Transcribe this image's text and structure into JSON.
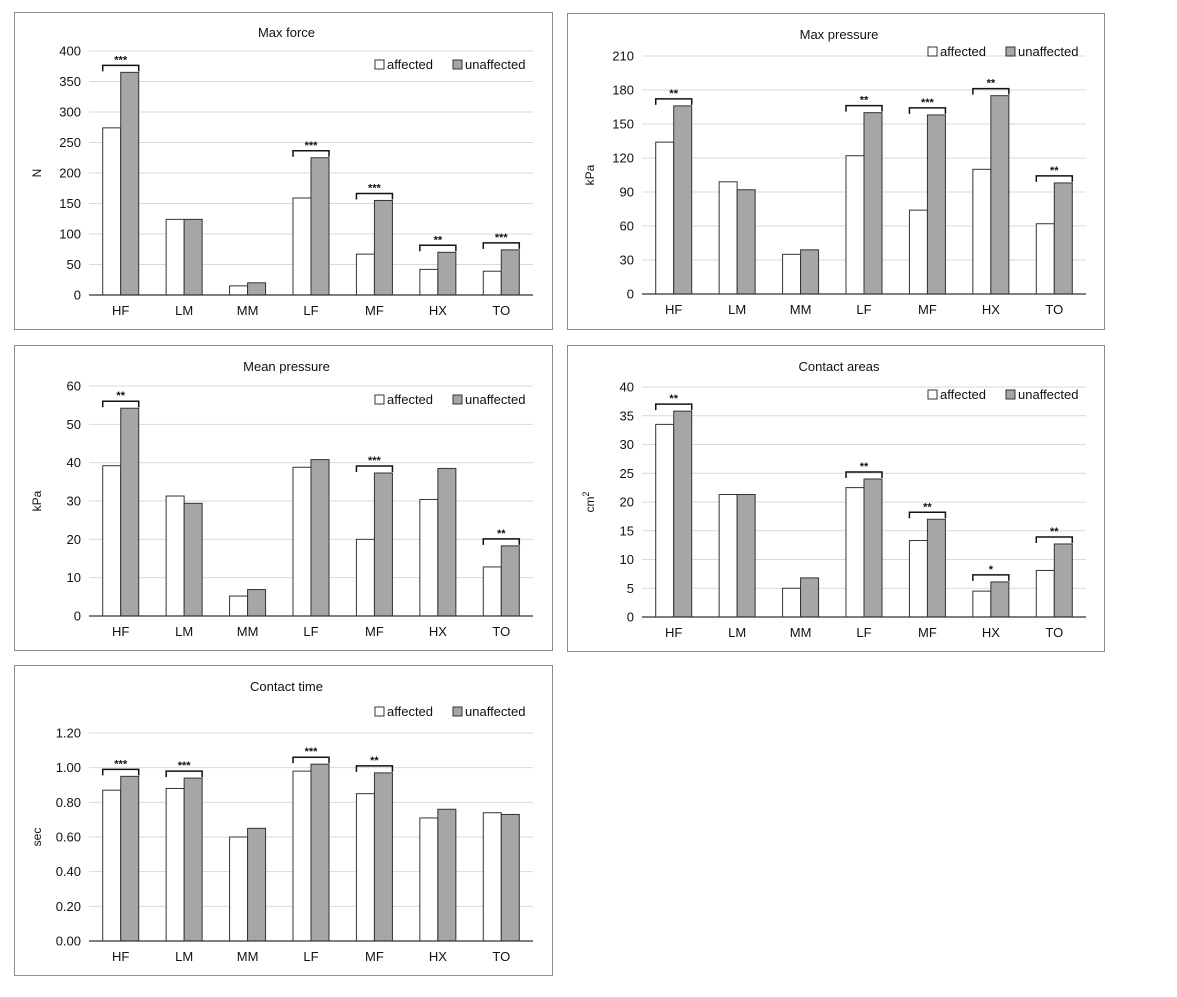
{
  "colors": {
    "affected": "#ffffff",
    "unaffected": "#a6a6a6",
    "bar_stroke": "#333333",
    "grid": "#d9d9d9",
    "axis": "#333333",
    "panel_border": "#8c8c8c"
  },
  "chart_data": [
    {
      "type": "bar",
      "title": "Max force",
      "ylabel": "N",
      "ylabel_sup": "",
      "categories": [
        "HF",
        "LM",
        "MM",
        "LF",
        "MF",
        "HX",
        "TO"
      ],
      "yticks": [
        "0",
        "50",
        "100",
        "150",
        "200",
        "250",
        "300",
        "350",
        "400"
      ],
      "ylim": [
        0,
        400
      ],
      "grid": true,
      "legend": "top-right",
      "series": [
        {
          "name": "affected",
          "values": [
            274,
            124,
            15,
            159,
            67,
            42,
            39
          ]
        },
        {
          "name": "unaffected",
          "values": [
            365,
            124,
            20,
            225,
            155,
            70,
            74
          ]
        }
      ],
      "significance": [
        "***",
        "",
        "",
        "***",
        "***",
        "**",
        "***"
      ]
    },
    {
      "type": "bar",
      "title": "Max pressure",
      "ylabel": "kPa",
      "ylabel_sup": "",
      "categories": [
        "HF",
        "LM",
        "MM",
        "LF",
        "MF",
        "HX",
        "TO"
      ],
      "yticks": [
        "0",
        "30",
        "60",
        "90",
        "120",
        "150",
        "180",
        "210"
      ],
      "ylim": [
        0,
        210
      ],
      "grid": true,
      "legend": "top-right",
      "series": [
        {
          "name": "affected",
          "values": [
            134,
            99,
            35,
            122,
            74,
            110,
            62
          ]
        },
        {
          "name": "unaffected",
          "values": [
            166,
            92,
            39,
            160,
            158,
            175,
            98
          ]
        }
      ],
      "significance": [
        "**",
        "",
        "",
        "**",
        "***",
        "**",
        "**"
      ]
    },
    {
      "type": "bar",
      "title": "Mean pressure",
      "ylabel": "kPa",
      "ylabel_sup": "",
      "categories": [
        "HF",
        "LM",
        "MM",
        "LF",
        "MF",
        "HX",
        "TO"
      ],
      "yticks": [
        "0",
        "10",
        "20",
        "30",
        "40",
        "50",
        "60"
      ],
      "ylim": [
        0,
        60
      ],
      "grid": true,
      "legend": "top-right",
      "series": [
        {
          "name": "affected",
          "values": [
            39.2,
            31.3,
            5.2,
            38.8,
            20.0,
            30.4,
            12.8
          ]
        },
        {
          "name": "unaffected",
          "values": [
            54.2,
            29.4,
            6.9,
            40.8,
            37.3,
            38.5,
            18.3
          ]
        }
      ],
      "significance": [
        "**",
        "",
        "",
        "",
        "***",
        "",
        "**"
      ]
    },
    {
      "type": "bar",
      "title": "Contact areas",
      "ylabel": "cm",
      "ylabel_sup": "2",
      "categories": [
        "HF",
        "LM",
        "MM",
        "LF",
        "MF",
        "HX",
        "TO"
      ],
      "yticks": [
        "0",
        "5",
        "10",
        "15",
        "20",
        "25",
        "30",
        "35",
        "40"
      ],
      "ylim": [
        0,
        40
      ],
      "grid": true,
      "legend": "top-right",
      "series": [
        {
          "name": "affected",
          "values": [
            33.5,
            21.3,
            5.0,
            22.5,
            13.3,
            4.5,
            8.1
          ]
        },
        {
          "name": "unaffected",
          "values": [
            35.8,
            21.3,
            6.8,
            24.0,
            17.0,
            6.1,
            12.7
          ]
        }
      ],
      "significance": [
        "**",
        "",
        "",
        "**",
        "**",
        "*",
        "**"
      ]
    },
    {
      "type": "bar",
      "title": "Contact time",
      "ylabel": "sec",
      "ylabel_sup": "",
      "categories": [
        "HF",
        "LM",
        "MM",
        "LF",
        "MF",
        "HX",
        "TO"
      ],
      "yticks": [
        "0.00",
        "0.20",
        "0.40",
        "0.60",
        "0.80",
        "1.00",
        "1.20"
      ],
      "ylim": [
        0,
        1.2
      ],
      "grid": true,
      "legend": "top-right",
      "series": [
        {
          "name": "affected",
          "values": [
            0.87,
            0.88,
            0.6,
            0.98,
            0.85,
            0.71,
            0.74
          ]
        },
        {
          "name": "unaffected",
          "values": [
            0.95,
            0.94,
            0.65,
            1.02,
            0.97,
            0.76,
            0.73
          ]
        }
      ],
      "significance": [
        "***",
        "***",
        "",
        "***",
        "**",
        "",
        ""
      ]
    }
  ]
}
